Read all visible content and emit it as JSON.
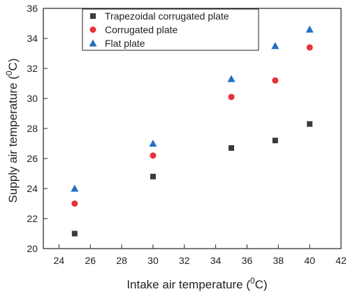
{
  "chart_data": {
    "type": "scatter",
    "xlabel": "Intake air temperature (",
    "xlabel_sup": "0",
    "xlabel_unit": "C)",
    "ylabel": "Supply air temperature (",
    "ylabel_sup": "0",
    "ylabel_unit": "C)",
    "xlim": [
      23,
      42
    ],
    "ylim": [
      20,
      36
    ],
    "xticks": [
      "24",
      "26",
      "28",
      "30",
      "32",
      "34",
      "36",
      "38",
      "40",
      "42"
    ],
    "yticks": [
      "20",
      "22",
      "24",
      "26",
      "28",
      "30",
      "32",
      "34",
      "36"
    ],
    "grid": false,
    "legend_position": "top-left",
    "series": [
      {
        "name": "Trapezoidal corrugated plate",
        "marker": "square",
        "color": "#3a3a3a",
        "x": [
          25,
          30,
          35,
          37.8,
          40
        ],
        "y": [
          21.0,
          24.8,
          26.7,
          27.2,
          28.3
        ]
      },
      {
        "name": "Corrugated plate",
        "marker": "circle",
        "color": "#e8313b",
        "x": [
          25,
          30,
          35,
          37.8,
          40
        ],
        "y": [
          23.0,
          26.2,
          30.1,
          31.2,
          33.4
        ]
      },
      {
        "name": "Flat plate",
        "marker": "triangle",
        "color": "#1f6fc5",
        "x": [
          25,
          30,
          35,
          37.8,
          40
        ],
        "y": [
          24.0,
          27.0,
          31.3,
          33.5,
          34.6
        ]
      }
    ]
  }
}
